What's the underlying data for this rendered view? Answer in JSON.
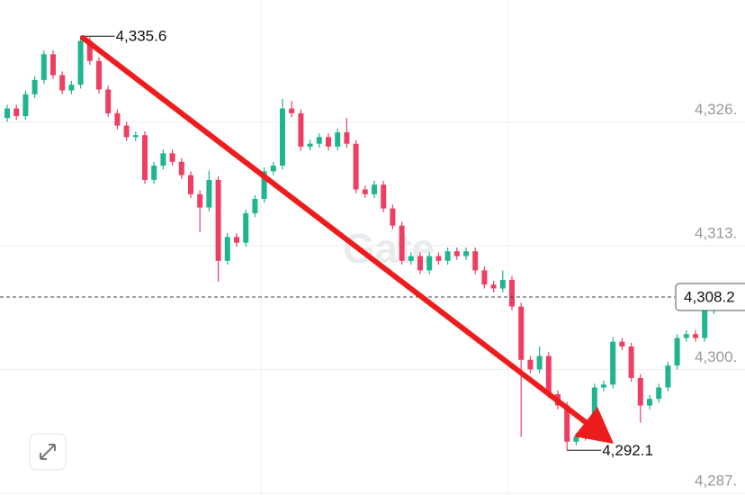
{
  "chart_data": {
    "type": "candlestick",
    "watermark": "Gate",
    "up_color": "#1fb58f",
    "down_color": "#ee3f62",
    "grid": true,
    "ylim": [
      4287.4,
      4339.4
    ],
    "yticks": [
      {
        "value": 4326.6,
        "label": "4,326."
      },
      {
        "value": 4313.6,
        "label": "4,313."
      },
      {
        "value": 4300.6,
        "label": "4,300."
      },
      {
        "value": 4287.6,
        "label": "4,287."
      }
    ],
    "annotations": [
      {
        "value": 4335.6,
        "label": "4,335.6"
      },
      {
        "value": 4292.1,
        "label": "4,292.1"
      }
    ],
    "last_price": {
      "value": 4308.2,
      "label": "4,308.2"
    },
    "open": [
      4327.0,
      4328.0,
      4327.2,
      4329.5,
      4331.0,
      4333.7,
      4331.5,
      4329.9,
      4330.5,
      4335.1,
      4333.0,
      4330.0,
      4327.5,
      4326.2,
      4325.0,
      4325.2,
      4320.5,
      4322.0,
      4323.3,
      4322.4,
      4321.0,
      4319.0,
      4317.6,
      4320.5,
      4312.0,
      4314.5,
      4313.9,
      4317.0,
      4318.5,
      4321.4,
      4322.0,
      4328.0,
      4327.5,
      4324.0,
      4324.3,
      4325.0,
      4324.0,
      4325.5,
      4324.3,
      4319.5,
      4319.0,
      4320.0,
      4317.5,
      4315.7,
      4312.0,
      4312.5,
      4311.0,
      4312.5,
      4312.0,
      4313.0,
      4312.5,
      4313.0,
      4311.0,
      4309.5,
      4309.1,
      4310.0,
      4307.2,
      4301.6,
      4300.6,
      4302.0,
      4298.0,
      4296.8,
      4293.0,
      4293.5,
      4294.0,
      4298.7,
      4299.0,
      4303.5,
      4303.0,
      4299.7,
      4296.8,
      4297.5,
      4298.7,
      4301.0,
      4303.9,
      4304.3,
      4303.9,
      4306.8,
      4308.0,
      4307.5
    ],
    "high": [
      4328.4,
      4328.4,
      4329.9,
      4331.4,
      4334.1,
      4334.1,
      4331.9,
      4330.9,
      4335.6,
      4335.5,
      4333.4,
      4330.4,
      4327.9,
      4326.6,
      4325.6,
      4325.6,
      4322.4,
      4323.7,
      4323.7,
      4322.8,
      4321.4,
      4319.4,
      4321.5,
      4320.9,
      4314.9,
      4314.9,
      4317.4,
      4318.9,
      4321.8,
      4322.4,
      4329.0,
      4328.8,
      4327.9,
      4324.7,
      4325.4,
      4325.4,
      4325.9,
      4327.0,
      4324.7,
      4319.9,
      4320.4,
      4320.4,
      4317.9,
      4316.1,
      4312.9,
      4312.9,
      4312.9,
      4312.9,
      4313.4,
      4313.4,
      4313.4,
      4313.4,
      4311.4,
      4309.9,
      4311.0,
      4310.4,
      4307.6,
      4302.0,
      4303.0,
      4302.4,
      4298.4,
      4297.2,
      4293.9,
      4294.4,
      4299.1,
      4299.4,
      4304.0,
      4303.9,
      4303.4,
      4300.1,
      4297.9,
      4299.1,
      4301.4,
      4304.3,
      4304.7,
      4304.7,
      4307.2,
      4308.4,
      4309.5,
      4308.6
    ],
    "low": [
      4326.6,
      4326.8,
      4326.8,
      4329.1,
      4330.6,
      4331.1,
      4329.5,
      4329.5,
      4330.1,
      4332.6,
      4329.6,
      4327.1,
      4325.8,
      4324.6,
      4324.6,
      4320.1,
      4320.1,
      4321.6,
      4322.0,
      4320.6,
      4318.6,
      4315.0,
      4317.2,
      4309.8,
      4311.6,
      4313.5,
      4313.5,
      4316.6,
      4318.1,
      4321.0,
      4321.6,
      4327.1,
      4323.6,
      4323.6,
      4323.9,
      4323.6,
      4323.6,
      4323.9,
      4319.1,
      4318.6,
      4318.6,
      4317.1,
      4315.3,
      4311.6,
      4311.6,
      4310.6,
      4310.6,
      4311.6,
      4311.6,
      4312.1,
      4312.1,
      4310.6,
      4309.1,
      4308.7,
      4308.7,
      4306.8,
      4293.5,
      4300.2,
      4300.2,
      4297.6,
      4296.4,
      4292.1,
      4292.6,
      4293.1,
      4293.6,
      4298.3,
      4298.6,
      4302.6,
      4299.3,
      4295.0,
      4296.4,
      4297.1,
      4298.3,
      4300.6,
      4303.5,
      4303.5,
      4303.5,
      4306.4,
      4307.1,
      4307.1
    ],
    "close": [
      4328.0,
      4327.2,
      4329.5,
      4331.0,
      4333.7,
      4331.5,
      4329.9,
      4330.5,
      4335.1,
      4333.0,
      4330.0,
      4327.5,
      4326.2,
      4325.0,
      4325.2,
      4320.5,
      4322.0,
      4323.3,
      4322.4,
      4321.0,
      4319.0,
      4317.6,
      4320.5,
      4312.0,
      4314.5,
      4313.9,
      4317.0,
      4318.5,
      4321.4,
      4322.0,
      4328.0,
      4327.5,
      4324.0,
      4324.3,
      4325.0,
      4324.0,
      4325.5,
      4324.3,
      4319.5,
      4319.0,
      4320.0,
      4317.5,
      4315.7,
      4312.0,
      4312.5,
      4311.0,
      4312.5,
      4312.0,
      4313.0,
      4312.5,
      4313.0,
      4311.0,
      4309.5,
      4309.1,
      4310.0,
      4307.2,
      4301.6,
      4300.6,
      4302.0,
      4298.0,
      4296.8,
      4293.0,
      4293.5,
      4294.0,
      4298.7,
      4299.0,
      4303.5,
      4303.0,
      4299.7,
      4296.8,
      4297.5,
      4298.7,
      4301.0,
      4303.9,
      4304.3,
      4303.9,
      4306.8,
      4308.0,
      4307.5,
      4308.2
    ]
  }
}
